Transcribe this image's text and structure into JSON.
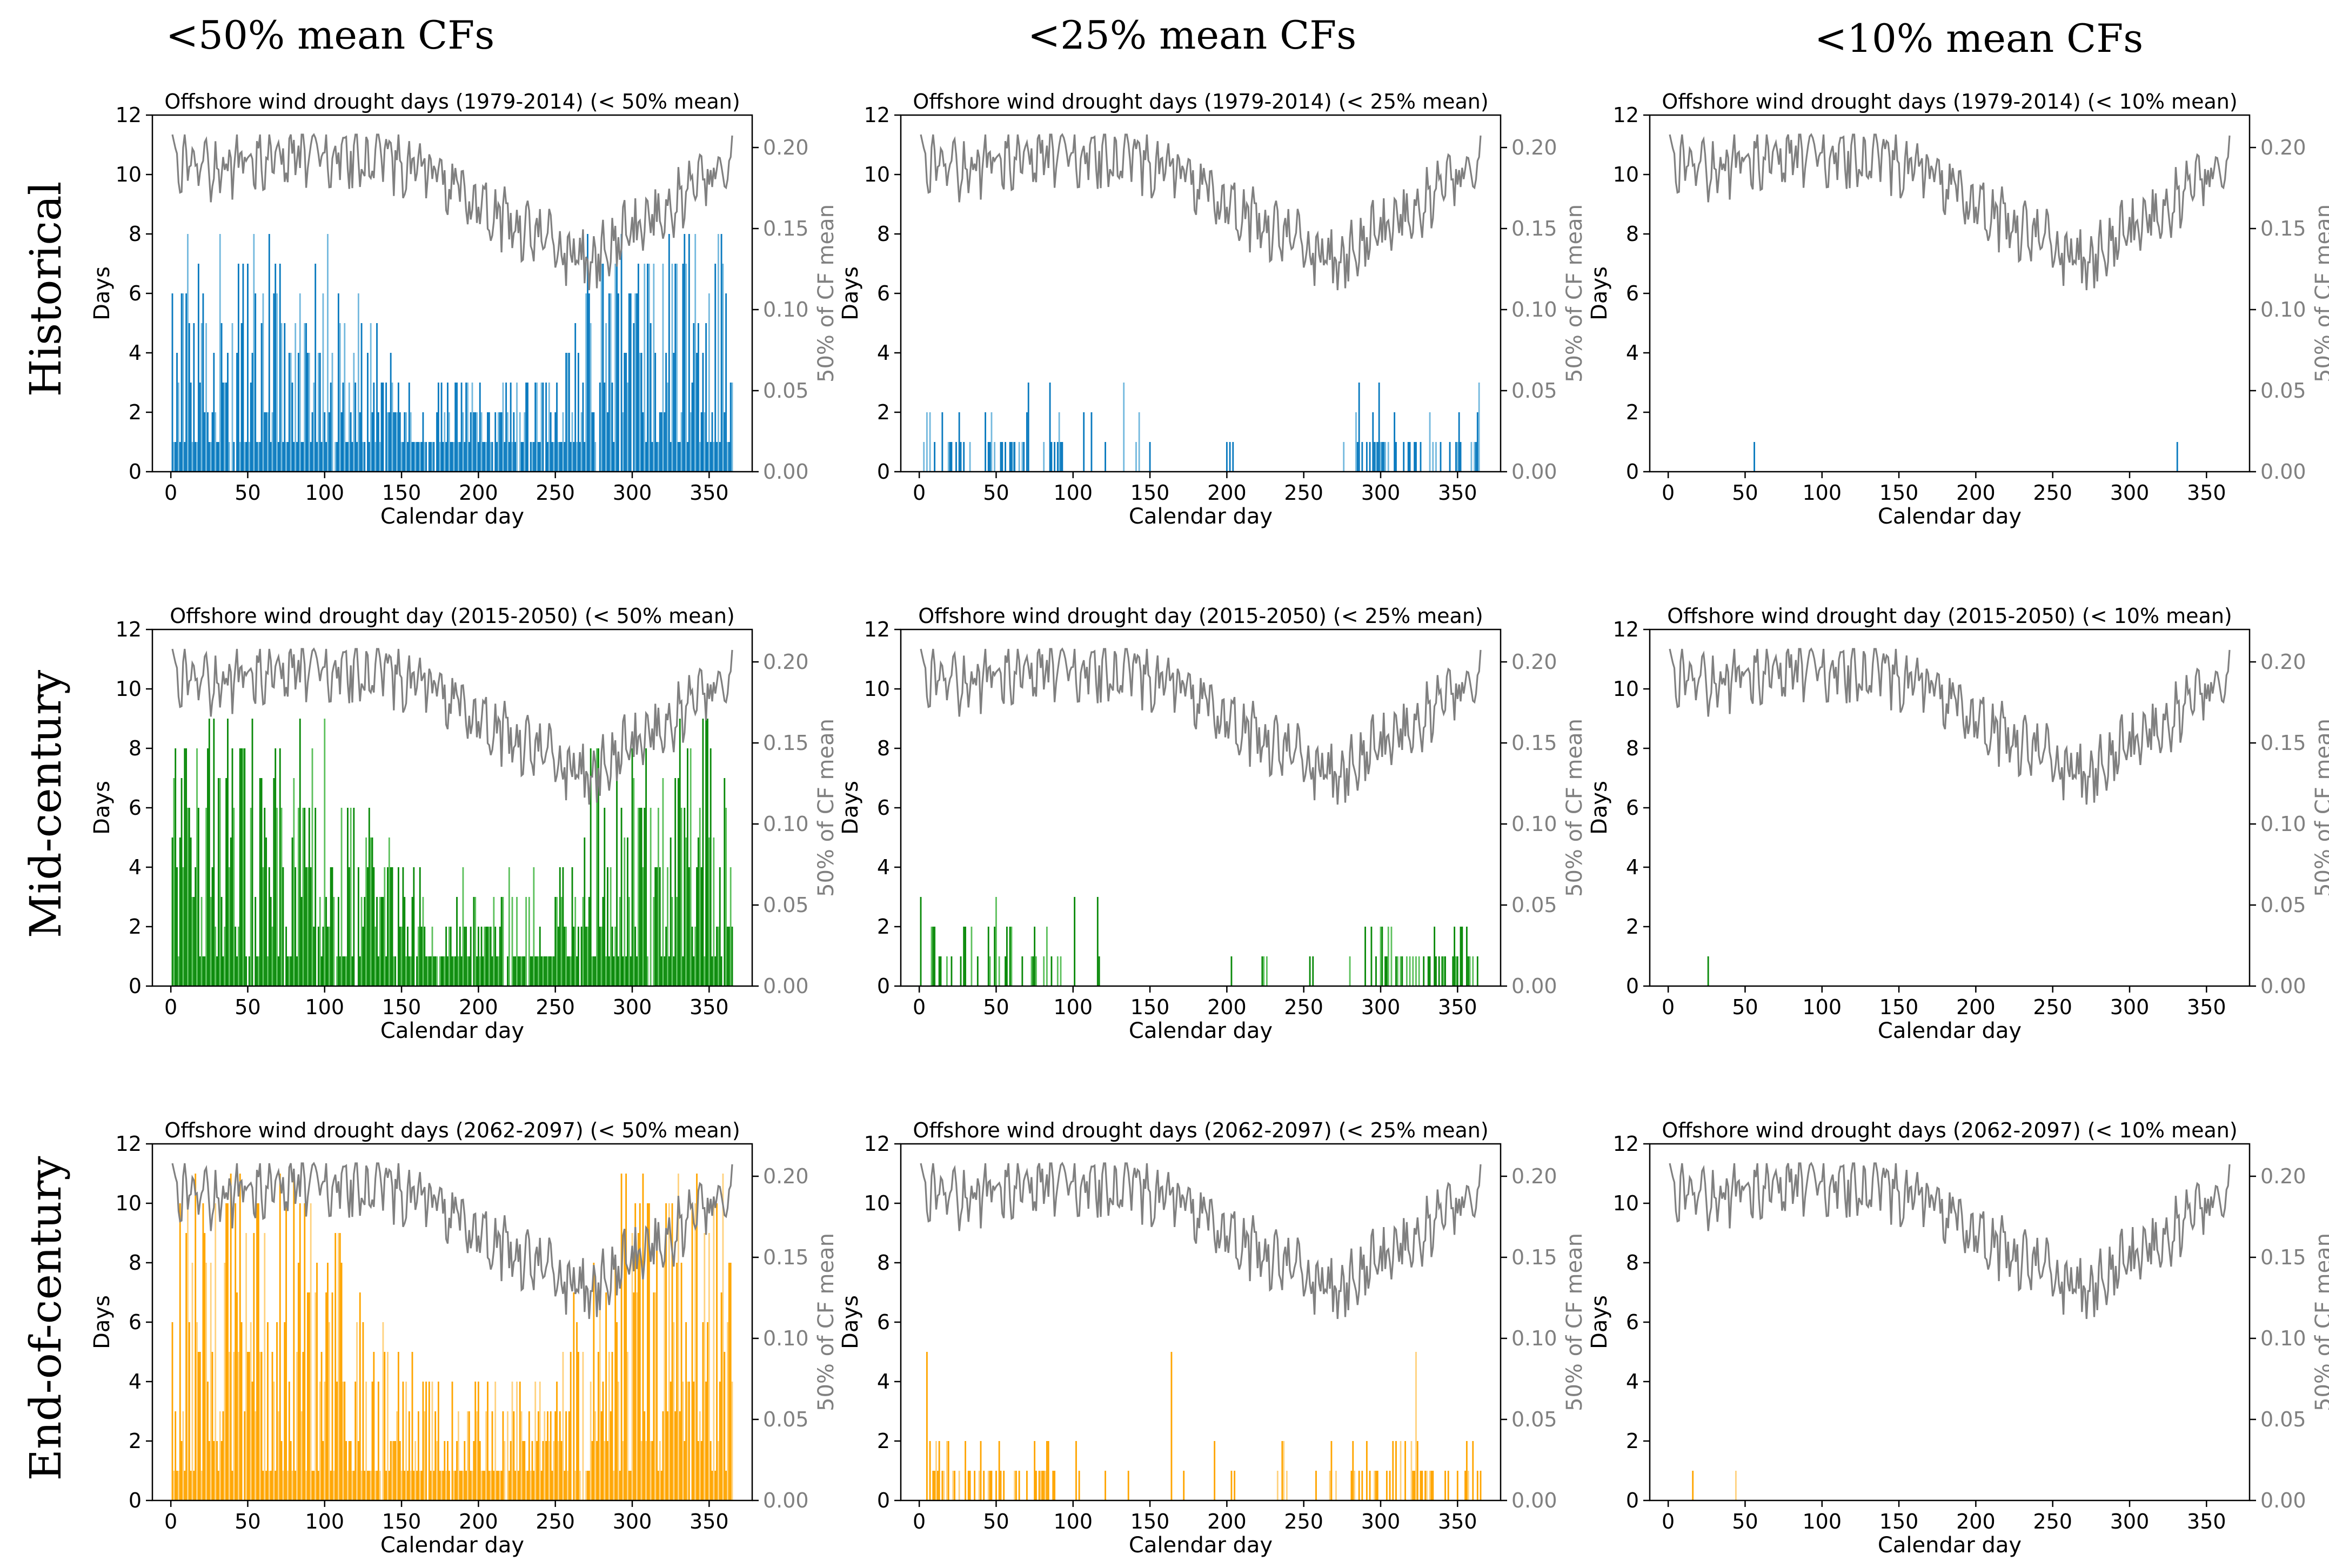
{
  "column_headers": [
    "<50% mean CFs",
    "<25% mean CFs",
    "<10% mean CFs"
  ],
  "row_headers": [
    "Historical",
    "Mid-century",
    "End-of-century"
  ],
  "colors": {
    "historical": "#0a7abf",
    "historical_light": "#74b9de",
    "midcentury": "#0a8a0a",
    "midcentury_light": "#5cc05c",
    "endcentury": "#ffa500",
    "endcentury_light": "#ffd27f",
    "cf_line": "#808080"
  },
  "chart_data": [
    {
      "id": "h50",
      "type": "bar",
      "title": "Offshore wind drought days (1979-2014) (< 50% mean)",
      "period": "historical",
      "threshold": 50,
      "max_days": 8,
      "density": 0.95,
      "spikes": [
        [
          0.8,
          3
        ],
        [
          0.85,
          2
        ]
      ],
      "xlabel": "Calendar day",
      "ylabel": "Days",
      "y2label": "50% of CF mean",
      "ylim": [
        0,
        12
      ],
      "yticks": [
        0,
        2,
        4,
        6,
        8,
        10,
        12
      ],
      "y2lim": [
        0,
        0.22
      ],
      "y2ticks": [
        "0.00",
        "0.05",
        "0.10",
        "0.15",
        "0.20"
      ],
      "xlim": [
        -12,
        378
      ],
      "xticks": [
        0,
        50,
        100,
        150,
        200,
        250,
        300,
        350
      ]
    },
    {
      "id": "h25",
      "type": "bar",
      "title": "Offshore wind drought days (1979-2014) (< 25% mean)",
      "period": "historical",
      "threshold": 25,
      "max_days": 3,
      "density": 0.4,
      "spikes": [],
      "xlabel": "Calendar day",
      "ylabel": "Days",
      "y2label": "50% of CF mean",
      "ylim": [
        0,
        12
      ],
      "yticks": [
        0,
        2,
        4,
        6,
        8,
        10,
        12
      ],
      "y2lim": [
        0,
        0.22
      ],
      "y2ticks": [
        "0.00",
        "0.05",
        "0.10",
        "0.15",
        "0.20"
      ],
      "xlim": [
        -12,
        378
      ],
      "xticks": [
        0,
        50,
        100,
        150,
        200,
        250,
        300,
        350
      ]
    },
    {
      "id": "h10",
      "type": "bar",
      "title": "Offshore wind drought days (1979-2014) (< 10% mean)",
      "period": "historical",
      "threshold": 10,
      "max_days": 1,
      "days": [
        [
          56,
          1
        ],
        [
          331,
          1
        ]
      ],
      "xlabel": "Calendar day",
      "ylabel": "Days",
      "y2label": "50% of CF mean",
      "ylim": [
        0,
        12
      ],
      "yticks": [
        0,
        2,
        4,
        6,
        8,
        10,
        12
      ],
      "y2lim": [
        0,
        0.22
      ],
      "y2ticks": [
        "0.00",
        "0.05",
        "0.10",
        "0.15",
        "0.20"
      ],
      "xlim": [
        -12,
        378
      ],
      "xticks": [
        0,
        50,
        100,
        150,
        200,
        250,
        300,
        350
      ]
    },
    {
      "id": "m50",
      "type": "bar",
      "title": "Offshore wind drought day (2015-2050) (< 50% mean)",
      "period": "midcentury",
      "threshold": 50,
      "max_days": 9,
      "density": 0.95,
      "spikes": [
        [
          0.8,
          3
        ],
        [
          0.85,
          2
        ]
      ],
      "xlabel": "Calendar day",
      "ylabel": "Days",
      "y2label": "50% of CF mean",
      "ylim": [
        0,
        12
      ],
      "yticks": [
        0,
        2,
        4,
        6,
        8,
        10,
        12
      ],
      "y2lim": [
        0,
        0.22
      ],
      "y2ticks": [
        "0.00",
        "0.05",
        "0.10",
        "0.15",
        "0.20"
      ],
      "xlim": [
        -12,
        378
      ],
      "xticks": [
        0,
        50,
        100,
        150,
        200,
        250,
        300,
        350
      ]
    },
    {
      "id": "m25",
      "type": "bar",
      "title": "Offshore wind drought day (2015-2050) (< 25% mean)",
      "period": "midcentury",
      "threshold": 25,
      "max_days": 3,
      "density": 0.42,
      "spikes": [],
      "xlabel": "Calendar day",
      "ylabel": "Days",
      "y2label": "50% of CF mean",
      "ylim": [
        0,
        12
      ],
      "yticks": [
        0,
        2,
        4,
        6,
        8,
        10,
        12
      ],
      "y2lim": [
        0,
        0.22
      ],
      "y2ticks": [
        "0.00",
        "0.05",
        "0.10",
        "0.15",
        "0.20"
      ],
      "xlim": [
        -12,
        378
      ],
      "xticks": [
        0,
        50,
        100,
        150,
        200,
        250,
        300,
        350
      ]
    },
    {
      "id": "m10",
      "type": "bar",
      "title": "Offshore wind drought day (2015-2050) (< 10% mean)",
      "period": "midcentury",
      "threshold": 10,
      "max_days": 1,
      "days": [
        [
          26,
          1
        ]
      ],
      "xlabel": "Calendar day",
      "ylabel": "Days",
      "y2label": "50% of CF mean",
      "ylim": [
        0,
        12
      ],
      "yticks": [
        0,
        2,
        4,
        6,
        8,
        10,
        12
      ],
      "y2lim": [
        0,
        0.22
      ],
      "y2ticks": [
        "0.00",
        "0.05",
        "0.10",
        "0.15",
        "0.20"
      ],
      "xlim": [
        -12,
        378
      ],
      "xticks": [
        0,
        50,
        100,
        150,
        200,
        250,
        300,
        350
      ]
    },
    {
      "id": "e50",
      "type": "bar",
      "title": "Offshore wind drought days (2062-2097) (< 50% mean)",
      "period": "endcentury",
      "threshold": 50,
      "max_days": 11,
      "density": 0.97,
      "spikes": [
        [
          0.8,
          4
        ],
        [
          0.85,
          3
        ]
      ],
      "xlabel": "Calendar day",
      "ylabel": "Days",
      "y2label": "50% of CF mean",
      "ylim": [
        0,
        12
      ],
      "yticks": [
        0,
        2,
        4,
        6,
        8,
        10,
        12
      ],
      "y2lim": [
        0,
        0.22
      ],
      "y2ticks": [
        "0.00",
        "0.05",
        "0.10",
        "0.15",
        "0.20"
      ],
      "xlim": [
        -12,
        378
      ],
      "xticks": [
        0,
        50,
        100,
        150,
        200,
        250,
        300,
        350
      ]
    },
    {
      "id": "e25",
      "type": "bar",
      "title": "Offshore wind drought days (2062-2097) (< 25% mean)",
      "period": "endcentury",
      "threshold": 25,
      "max_days": 5,
      "density": 0.45,
      "spikes": [],
      "xlabel": "Calendar day",
      "ylabel": "Days",
      "y2label": "50% of CF mean",
      "ylim": [
        0,
        12
      ],
      "yticks": [
        0,
        2,
        4,
        6,
        8,
        10,
        12
      ],
      "y2lim": [
        0,
        0.22
      ],
      "y2ticks": [
        "0.00",
        "0.05",
        "0.10",
        "0.15",
        "0.20"
      ],
      "xlim": [
        -12,
        378
      ],
      "xticks": [
        0,
        50,
        100,
        150,
        200,
        250,
        300,
        350
      ]
    },
    {
      "id": "e10",
      "type": "bar",
      "title": "Offshore wind drought days (2062-2097) (< 10% mean)",
      "period": "endcentury",
      "threshold": 10,
      "max_days": 1,
      "days": [
        [
          16,
          1
        ],
        [
          44,
          1
        ]
      ],
      "xlabel": "Calendar day",
      "ylabel": "Days",
      "y2label": "50% of CF mean",
      "ylim": [
        0,
        12
      ],
      "yticks": [
        0,
        2,
        4,
        6,
        8,
        10,
        12
      ],
      "y2lim": [
        0,
        0.22
      ],
      "y2ticks": [
        "0.00",
        "0.05",
        "0.10",
        "0.15",
        "0.20"
      ],
      "xlim": [
        -12,
        378
      ],
      "xticks": [
        0,
        50,
        100,
        150,
        200,
        250,
        300,
        350
      ]
    }
  ]
}
